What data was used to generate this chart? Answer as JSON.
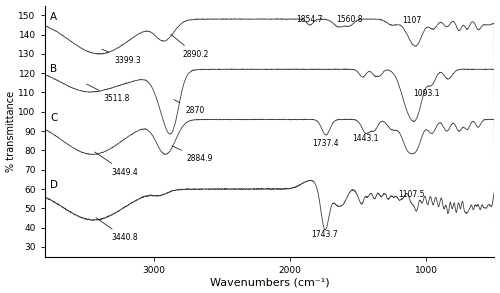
{
  "title": "",
  "xlabel": "Wavenumbers (cm⁻¹)",
  "ylabel": "% transmittance",
  "xmin": 500,
  "xmax": 3800,
  "ymin": 25,
  "ymax": 155,
  "yticks": [
    30,
    40,
    50,
    60,
    70,
    80,
    90,
    100,
    110,
    120,
    130,
    140,
    150
  ],
  "xticks": [
    1000,
    2000,
    3000
  ],
  "spectra_labels": [
    "A",
    "B",
    "C",
    "D"
  ],
  "line_color": "#404040",
  "ann_fs": 5.5
}
